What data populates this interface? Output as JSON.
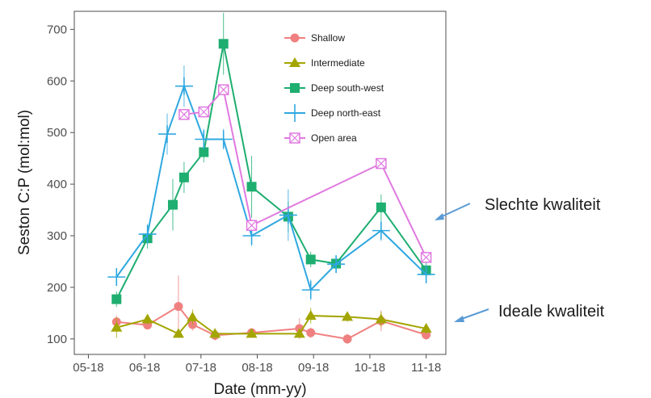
{
  "chart_data": {
    "type": "line",
    "title": "",
    "xlabel": "Date (mm-yy)",
    "ylabel": "Seston C:P (mol:mol)",
    "x_ticks": [
      "05-18",
      "06-18",
      "07-18",
      "08-18",
      "09-18",
      "10-18",
      "11-18"
    ],
    "y_ticks": [
      100,
      200,
      300,
      400,
      500,
      600,
      700
    ],
    "xlim": [
      -0.25,
      6.35
    ],
    "ylim": [
      70,
      735
    ],
    "grid": false,
    "legend_position": "top-right",
    "series": [
      {
        "name": "Shallow",
        "color": "#F08080",
        "marker": "circle",
        "x": [
          0.5,
          1.05,
          1.6,
          1.85,
          2.25,
          2.9,
          3.75,
          3.95,
          4.6,
          5.2,
          6.0
        ],
        "y": [
          133,
          127,
          163,
          128,
          107,
          112,
          120,
          112,
          100,
          135,
          108
        ],
        "err": [
          12,
          8,
          60,
          12,
          10,
          8,
          20,
          10,
          10,
          20,
          10
        ]
      },
      {
        "name": "Intermediate",
        "color": "#A3A500",
        "marker": "triangle",
        "x": [
          0.5,
          1.05,
          1.6,
          1.85,
          2.25,
          2.9,
          3.75,
          3.95,
          4.6,
          5.2,
          6.0
        ],
        "y": [
          122,
          138,
          110,
          142,
          110,
          110,
          110,
          145,
          143,
          138,
          120
        ],
        "err": [
          20,
          10,
          8,
          15,
          10,
          8,
          8,
          15,
          10,
          15,
          10
        ]
      },
      {
        "name": "Deep south-west",
        "color": "#1EAE70",
        "marker": "square",
        "x": [
          0.5,
          1.05,
          1.5,
          1.7,
          2.05,
          2.4,
          2.9,
          3.55,
          3.95,
          4.4,
          5.2,
          6.0
        ],
        "y": [
          177,
          295,
          360,
          413,
          462,
          672,
          395,
          337,
          254,
          246,
          355,
          233
        ],
        "err": [
          15,
          20,
          50,
          30,
          20,
          60,
          60,
          30,
          15,
          15,
          25,
          15
        ]
      },
      {
        "name": "Deep north-east",
        "color": "#2FA8E0",
        "marker": "plus",
        "x": [
          0.5,
          1.05,
          1.4,
          1.7,
          2.05,
          2.4,
          2.9,
          3.55,
          3.95,
          4.4,
          5.2,
          6.0
        ],
        "y": [
          220,
          303,
          497,
          590,
          487,
          487,
          300,
          340,
          195,
          245,
          310,
          225
        ],
        "err": [
          15,
          20,
          40,
          40,
          20,
          20,
          20,
          50,
          20,
          15,
          20,
          15
        ]
      },
      {
        "name": "Open area",
        "color": "#E079E0",
        "marker": "square-x",
        "x": [
          1.7,
          2.05,
          2.4,
          2.9,
          5.2,
          6.0
        ],
        "y": [
          535,
          540,
          583,
          320,
          440,
          258
        ],
        "err": [
          0,
          0,
          0,
          0,
          0,
          0
        ]
      }
    ],
    "annotations": [
      {
        "text": "Slechte kwaliteit",
        "points_to_y": 300
      },
      {
        "text": "Ideale kwaliteit",
        "points_to_y": 120
      }
    ],
    "annotation_color": "#5B9BD5"
  }
}
